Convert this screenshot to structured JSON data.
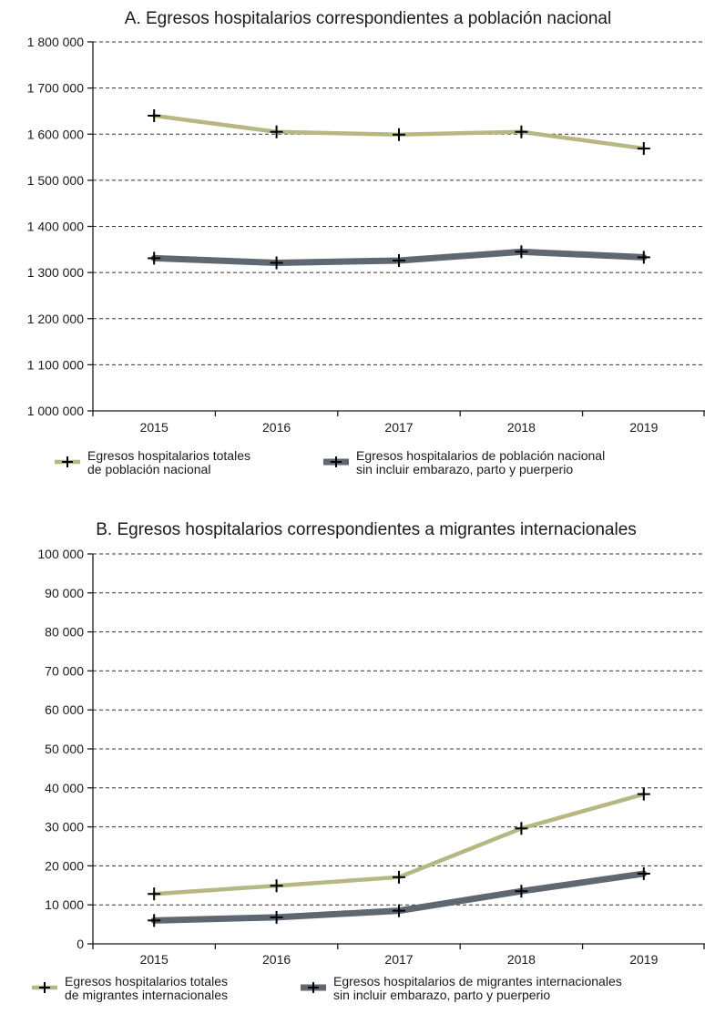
{
  "chart_data": [
    {
      "type": "line",
      "title": "A. Egresos hospitalarios correspondientes a población nacional",
      "xlabel": "",
      "ylabel": "",
      "categories": [
        "2015",
        "2016",
        "2017",
        "2018",
        "2019"
      ],
      "ylim": [
        1000000,
        1800000
      ],
      "yticks": [
        1000000,
        1100000,
        1200000,
        1300000,
        1400000,
        1500000,
        1600000,
        1700000,
        1800000
      ],
      "ytick_labels": [
        "1 000 000",
        "1 100 000",
        "1 200 000",
        "1 300 000",
        "1 400 000",
        "1 500 000",
        "1 600 000",
        "1 700 000",
        "1 800 000"
      ],
      "grid": true,
      "legend_position": "bottom",
      "series": [
        {
          "name": "Egresos hospitalarios totales de población nacional",
          "legend_lines": [
            "Egresos hospitalarios totales",
            "de población nacional"
          ],
          "color": "#b6b783",
          "values": [
            1640000,
            1605000,
            1599000,
            1605000,
            1569000
          ]
        },
        {
          "name": "Egresos hospitalarios de población nacional sin incluir embarazo, parto y puerperio",
          "legend_lines": [
            "Egresos hospitalarios de población nacional",
            "sin incluir embarazo, parto y puerperio"
          ],
          "color": "#5f6770",
          "values": [
            1331000,
            1321000,
            1326000,
            1345000,
            1333000
          ]
        }
      ]
    },
    {
      "type": "line",
      "title": "B. Egresos hospitalarios correspondientes a migrantes internacionales",
      "xlabel": "",
      "ylabel": "",
      "categories": [
        "2015",
        "2016",
        "2017",
        "2018",
        "2019"
      ],
      "ylim": [
        0,
        100000
      ],
      "yticks": [
        0,
        10000,
        20000,
        30000,
        40000,
        50000,
        60000,
        70000,
        80000,
        90000,
        100000
      ],
      "ytick_labels": [
        "0",
        "10 000",
        "20 000",
        "30 000",
        "40 000",
        "50 000",
        "60 000",
        "70 000",
        "80 000",
        "90 000",
        "100 000"
      ],
      "grid": true,
      "legend_position": "bottom",
      "series": [
        {
          "name": "Egresos hospitalarios totales de migrantes internacionales",
          "legend_lines": [
            "Egresos hospitalarios totales",
            "de migrantes internacionales"
          ],
          "color": "#b6b783",
          "values": [
            12800,
            14900,
            17100,
            29600,
            38400
          ]
        },
        {
          "name": "Egresos hospitalarios de migrantes internacionales sin incluir embarazo, parto y puerperio",
          "legend_lines": [
            "Egresos hospitalarios de migrantes internacionales",
            "sin incluir embarazo, parto y puerperio"
          ],
          "color": "#5f6770",
          "values": [
            6000,
            6800,
            8500,
            13500,
            18000
          ]
        }
      ]
    }
  ]
}
